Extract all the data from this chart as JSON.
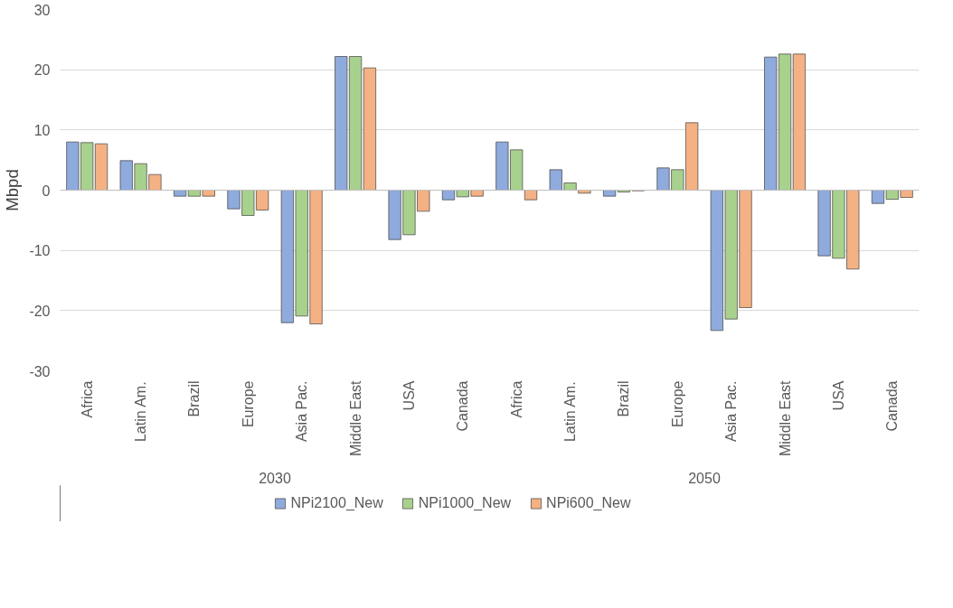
{
  "chart_data": {
    "type": "bar",
    "ylabel": "Mbpd",
    "categories": [
      "Africa",
      "Latin Am.",
      "Brazil",
      "Europe",
      "Asia Pac.",
      "Middle East",
      "USA",
      "Canada",
      "Africa",
      "Latin Am.",
      "Brazil",
      "Europe",
      "Asia Pac.",
      "Middle East",
      "USA",
      "Canada"
    ],
    "annotations": [
      "2030",
      "2050"
    ],
    "series": [
      {
        "name": "NPi2100_New",
        "color": "#8faadc",
        "values": [
          8.0,
          4.9,
          -1.0,
          -3.1,
          -22.0,
          22.2,
          -8.2,
          -1.6,
          8.0,
          3.4,
          -1.0,
          3.7,
          -23.3,
          22.1,
          -10.9,
          -2.2
        ]
      },
      {
        "name": "NPi1000_New",
        "color": "#a9d18e",
        "values": [
          7.9,
          4.4,
          -1.0,
          -4.2,
          -20.9,
          22.2,
          -7.4,
          -1.1,
          6.7,
          1.2,
          -0.3,
          3.4,
          -21.4,
          22.6,
          -11.3,
          -1.5
        ]
      },
      {
        "name": "NPi600_New",
        "color": "#f4b183",
        "values": [
          7.7,
          2.6,
          -1.0,
          -3.3,
          -22.2,
          20.3,
          -3.5,
          -1.0,
          -1.6,
          -0.5,
          -0.1,
          11.2,
          -19.5,
          22.6,
          -13.1,
          -1.2
        ]
      }
    ],
    "ylim": [
      -30,
      30
    ],
    "yticks": [
      -30,
      -20,
      -10,
      0,
      10,
      20,
      30
    ],
    "grid": "y",
    "legend": "bottom"
  }
}
